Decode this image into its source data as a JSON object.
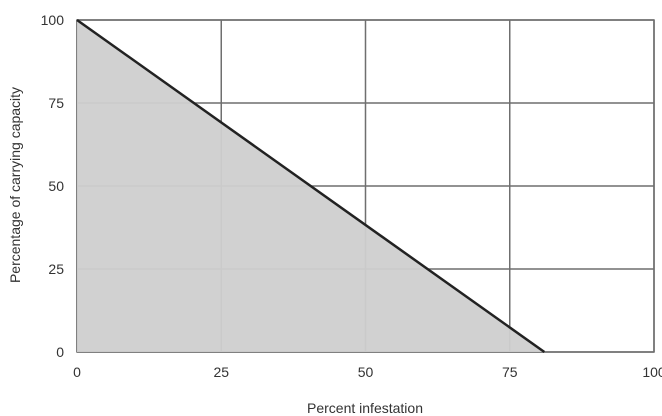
{
  "chart_data": {
    "type": "area",
    "title": "",
    "xlabel": "Percent infestation",
    "ylabel": "Percentage of carrying capacity",
    "xlim": [
      0,
      100
    ],
    "ylim": [
      0,
      100
    ],
    "x_ticks": [
      "0",
      "25",
      "50",
      "75",
      "100"
    ],
    "y_ticks": [
      "0",
      "25",
      "50",
      "75",
      "100"
    ],
    "grid": true,
    "series": [
      {
        "x": [
          0,
          81
        ],
        "y": [
          100,
          0
        ]
      }
    ]
  },
  "colors": {
    "grid": "#6f6f6f",
    "line": "#222222",
    "fill": "#cfcfcf"
  }
}
